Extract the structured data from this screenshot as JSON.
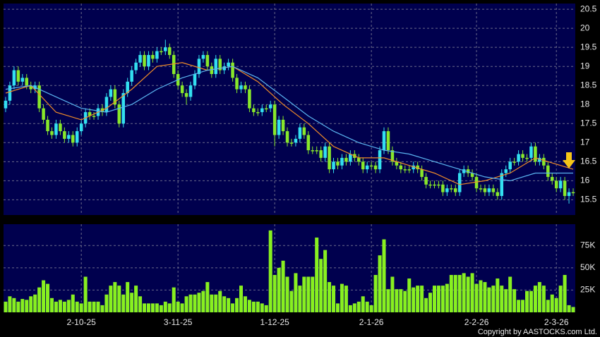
{
  "chart_data": [
    {
      "type": "candlestick",
      "up_color": "#33e0f0",
      "down_color": "#88e82a",
      "ylim": [
        15.1,
        20.65
      ],
      "yticks": [
        15.5,
        16,
        16.5,
        17,
        17.5,
        18,
        18.5,
        19,
        19.5,
        20,
        20.5
      ],
      "grid": true,
      "open": [
        17.9,
        18.1,
        18.5,
        18.9,
        18.6,
        18.7,
        18.5,
        18.4,
        18.5,
        17.9,
        17.6,
        17.3,
        17.2,
        17.5,
        17.3,
        17.1,
        17.2,
        17.0,
        17.3,
        17.5,
        17.8,
        17.7,
        17.7,
        17.9,
        17.8,
        18.2,
        18.4,
        18.0,
        17.5,
        18.3,
        18.6,
        18.9,
        19.1,
        19.3,
        19.0,
        19.3,
        19.2,
        19.4,
        19.4,
        19.5,
        19.3,
        18.8,
        18.5,
        18.3,
        18.2,
        18.5,
        18.8,
        19.2,
        19.3,
        19.0,
        18.8,
        19.2,
        18.9,
        19.0,
        19.1,
        18.7,
        18.4,
        18.5,
        18.4,
        17.9,
        17.8,
        17.8,
        17.9,
        17.9,
        18.0,
        17.2,
        17.6,
        17.3,
        17.0,
        17.0,
        17.1,
        17.4,
        17.2,
        16.8,
        16.8,
        16.8,
        16.6,
        16.9,
        16.3,
        16.5,
        16.4,
        16.6,
        16.5,
        16.7,
        16.6,
        16.5,
        16.3,
        16.4,
        16.4,
        16.3,
        16.8,
        17.3,
        16.8,
        16.5,
        16.4,
        16.3,
        16.3,
        16.3,
        16.4,
        16.3,
        16.1,
        15.9,
        15.9,
        15.9,
        15.9,
        15.7,
        15.8,
        15.8,
        15.7,
        16.2,
        16.3,
        16.2,
        16.1,
        15.8,
        15.8,
        15.7,
        15.8,
        15.7,
        15.6,
        16.2,
        16.3,
        16.5,
        16.5,
        16.7,
        16.6,
        16.6,
        16.9,
        16.5,
        16.6,
        16.4,
        16.1,
        16.0,
        15.8,
        16.0,
        15.6,
        15.7
      ],
      "high": [
        18.2,
        18.6,
        19.0,
        19.0,
        18.8,
        18.8,
        18.6,
        18.6,
        18.6,
        18.0,
        17.7,
        17.4,
        17.6,
        17.6,
        17.4,
        17.3,
        17.3,
        17.4,
        17.6,
        17.9,
        17.9,
        17.8,
        18.0,
        18.0,
        18.3,
        18.5,
        18.5,
        18.1,
        18.4,
        18.7,
        19.0,
        19.2,
        19.4,
        19.4,
        19.4,
        19.4,
        19.5,
        19.5,
        19.7,
        19.6,
        19.4,
        18.9,
        18.6,
        18.4,
        18.6,
        18.9,
        19.3,
        19.4,
        19.4,
        19.1,
        19.3,
        19.3,
        19.1,
        19.2,
        19.2,
        18.8,
        18.6,
        18.6,
        18.5,
        18.0,
        17.9,
        18.0,
        18.0,
        18.1,
        18.1,
        17.7,
        17.7,
        17.4,
        17.1,
        17.2,
        17.5,
        17.5,
        17.3,
        16.9,
        16.9,
        16.9,
        17.0,
        17.0,
        16.6,
        16.6,
        16.7,
        16.7,
        16.8,
        16.8,
        16.7,
        16.6,
        16.5,
        16.5,
        16.5,
        16.9,
        17.4,
        17.4,
        16.9,
        16.6,
        16.5,
        16.4,
        16.4,
        16.5,
        16.5,
        16.4,
        16.2,
        16.0,
        16.0,
        16.0,
        16.0,
        15.9,
        15.9,
        15.9,
        16.3,
        16.4,
        16.4,
        16.3,
        16.2,
        15.9,
        15.9,
        15.9,
        15.9,
        15.8,
        16.3,
        16.4,
        16.6,
        16.6,
        16.8,
        16.8,
        16.7,
        17.0,
        17.0,
        16.7,
        16.7,
        16.5,
        16.2,
        16.1,
        16.1,
        16.1,
        15.8,
        15.8
      ],
      "low": [
        17.8,
        18.0,
        18.4,
        18.5,
        18.5,
        18.4,
        18.3,
        18.3,
        17.8,
        17.5,
        17.2,
        17.1,
        17.1,
        17.2,
        17.0,
        17.0,
        16.9,
        16.9,
        17.2,
        17.4,
        17.6,
        17.6,
        17.6,
        17.7,
        17.7,
        18.1,
        17.9,
        17.4,
        17.4,
        18.2,
        18.5,
        18.8,
        19.0,
        18.9,
        18.9,
        19.1,
        19.1,
        19.3,
        19.3,
        19.2,
        18.7,
        18.4,
        18.2,
        18.0,
        18.1,
        18.4,
        18.7,
        19.1,
        18.9,
        18.7,
        18.7,
        18.8,
        18.8,
        18.9,
        18.6,
        18.3,
        18.3,
        18.3,
        17.8,
        17.7,
        17.7,
        17.7,
        17.8,
        17.8,
        16.9,
        17.1,
        17.2,
        16.9,
        16.9,
        16.9,
        17.0,
        17.1,
        16.7,
        16.7,
        16.7,
        16.5,
        16.5,
        16.2,
        16.2,
        16.3,
        16.3,
        16.4,
        16.4,
        16.5,
        16.4,
        16.2,
        16.2,
        16.3,
        16.2,
        16.2,
        16.7,
        16.7,
        16.4,
        16.3,
        16.2,
        16.2,
        16.2,
        16.2,
        16.2,
        16.0,
        15.8,
        15.8,
        15.8,
        15.8,
        15.6,
        15.6,
        15.7,
        15.6,
        15.6,
        16.1,
        16.1,
        16.0,
        15.7,
        15.7,
        15.6,
        15.6,
        15.6,
        15.5,
        15.5,
        16.1,
        16.2,
        16.4,
        16.4,
        16.5,
        16.5,
        16.5,
        16.4,
        16.4,
        16.3,
        16.0,
        15.9,
        15.7,
        15.7,
        15.5,
        15.4,
        15.6
      ],
      "close": [
        18.1,
        18.5,
        18.9,
        18.6,
        18.7,
        18.5,
        18.4,
        18.5,
        17.9,
        17.6,
        17.3,
        17.2,
        17.5,
        17.3,
        17.1,
        17.2,
        17.0,
        17.3,
        17.5,
        17.8,
        17.7,
        17.7,
        17.9,
        17.8,
        18.2,
        18.4,
        18.0,
        17.5,
        18.3,
        18.6,
        18.9,
        19.1,
        19.3,
        19.0,
        19.3,
        19.2,
        19.4,
        19.4,
        19.5,
        19.3,
        18.8,
        18.5,
        18.3,
        18.2,
        18.5,
        18.8,
        19.2,
        19.3,
        19.0,
        18.8,
        19.2,
        18.9,
        19.0,
        19.1,
        18.7,
        18.4,
        18.5,
        18.4,
        17.9,
        17.8,
        17.8,
        17.9,
        17.9,
        18.0,
        17.2,
        17.6,
        17.3,
        17.0,
        17.0,
        17.1,
        17.4,
        17.2,
        16.8,
        16.8,
        16.8,
        16.6,
        16.9,
        16.3,
        16.5,
        16.4,
        16.6,
        16.5,
        16.7,
        16.6,
        16.5,
        16.3,
        16.4,
        16.4,
        16.3,
        16.8,
        17.3,
        16.8,
        16.5,
        16.4,
        16.3,
        16.3,
        16.3,
        16.4,
        16.3,
        16.1,
        15.9,
        15.9,
        15.9,
        15.9,
        15.7,
        15.8,
        15.8,
        15.7,
        16.2,
        16.3,
        16.2,
        16.1,
        15.8,
        15.8,
        15.7,
        15.8,
        15.7,
        15.6,
        16.2,
        16.3,
        16.5,
        16.5,
        16.7,
        16.6,
        16.6,
        16.9,
        16.5,
        16.6,
        16.4,
        16.1,
        16.0,
        15.8,
        16.0,
        15.6,
        15.7,
        15.7
      ],
      "series": [
        {
          "color": "#f08c28",
          "x": [
            0,
            6,
            12,
            18,
            24,
            30,
            36,
            42,
            48,
            54,
            60,
            66,
            72,
            78,
            84,
            90,
            96,
            102,
            108,
            114,
            120,
            126,
            132,
            135
          ],
          "values": [
            18.3,
            18.5,
            17.8,
            17.6,
            17.9,
            18.4,
            19.0,
            19.1,
            18.9,
            19.0,
            18.6,
            18.0,
            17.5,
            16.9,
            16.6,
            16.6,
            16.4,
            16.2,
            15.9,
            16.0,
            16.2,
            16.6,
            16.4,
            16.3
          ]
        },
        {
          "color": "#5ab4f0",
          "x": [
            0,
            6,
            12,
            18,
            24,
            30,
            36,
            42,
            48,
            54,
            60,
            66,
            72,
            78,
            84,
            90,
            96,
            102,
            108,
            114,
            120,
            126,
            132,
            135
          ],
          "values": [
            18.4,
            18.5,
            18.2,
            17.9,
            17.8,
            18.0,
            18.4,
            18.7,
            18.9,
            19.0,
            18.7,
            18.2,
            17.7,
            17.3,
            17.0,
            16.8,
            16.7,
            16.5,
            16.3,
            16.1,
            16.0,
            16.2,
            16.2,
            16.2
          ]
        }
      ]
    },
    {
      "type": "bar",
      "color": "#88f020",
      "ylim": [
        0,
        99000
      ],
      "yticks": [
        {
          "value": 25000,
          "label": "25K"
        },
        {
          "value": 50000,
          "label": "50K"
        },
        {
          "value": 75000,
          "label": "75K"
        }
      ],
      "grid": true,
      "categories": [
        null,
        null,
        null,
        null,
        null,
        null,
        null,
        null,
        null,
        null,
        null,
        null,
        null,
        null,
        null,
        null,
        null,
        null,
        "2-10-25",
        null,
        null,
        null,
        null,
        null,
        null,
        null,
        null,
        null,
        null,
        null,
        null,
        null,
        null,
        null,
        null,
        null,
        null,
        null,
        null,
        null,
        null,
        "3-11-25",
        null,
        null,
        null,
        null,
        null,
        null,
        null,
        null,
        null,
        null,
        null,
        null,
        null,
        null,
        null,
        null,
        null,
        null,
        null,
        null,
        null,
        null,
        "1-12-25",
        null,
        null,
        null,
        null,
        null,
        null,
        null,
        null,
        null,
        null,
        null,
        null,
        null,
        null,
        null,
        null,
        null,
        null,
        null,
        null,
        null,
        null,
        "2-1-26",
        null,
        null,
        null,
        null,
        null,
        null,
        null,
        null,
        null,
        null,
        null,
        null,
        null,
        null,
        null,
        null,
        null,
        null,
        null,
        null,
        null,
        null,
        null,
        null,
        "2-2-26",
        null,
        null,
        null,
        null,
        null,
        null,
        null,
        null,
        null,
        null,
        null,
        null,
        null,
        null,
        null,
        null,
        null,
        null,
        "2-3-26",
        null,
        null,
        null,
        null
      ],
      "values": [
        12000,
        18000,
        16000,
        12000,
        15000,
        14000,
        18000,
        20000,
        28000,
        36000,
        32000,
        16000,
        12000,
        14000,
        12000,
        14000,
        20000,
        12000,
        10000,
        40000,
        12000,
        12000,
        12000,
        8000,
        20000,
        30000,
        34000,
        30000,
        20000,
        34000,
        22000,
        30000,
        18000,
        10000,
        10000,
        10000,
        10000,
        8000,
        12000,
        10000,
        28000,
        12000,
        10000,
        18000,
        20000,
        20000,
        22000,
        24000,
        34000,
        20000,
        20000,
        24000,
        18000,
        16000,
        10000,
        16000,
        30000,
        18000,
        14000,
        12000,
        12000,
        10000,
        8000,
        92000,
        42000,
        50000,
        58000,
        40000,
        24000,
        44000,
        30000,
        40000,
        40000,
        40000,
        84000,
        60000,
        70000,
        34000,
        30000,
        10000,
        32000,
        30000,
        8000,
        10000,
        12000,
        18000,
        12000,
        8000,
        42000,
        64000,
        82000,
        26000,
        40000,
        26000,
        26000,
        24000,
        38000,
        28000,
        30000,
        30000,
        16000,
        22000,
        30000,
        30000,
        30000,
        32000,
        42000,
        42000,
        42000,
        44000,
        40000,
        44000,
        32000,
        36000,
        34000,
        28000,
        30000,
        38000,
        30000,
        26000,
        40000,
        26000,
        14000,
        14000,
        24000,
        24000,
        30000,
        34000,
        30000,
        14000,
        20000,
        16000,
        30000,
        42000,
        8000,
        6000
      ]
    }
  ],
  "copyright": "Copyright by AASTOCKS.com Ltd."
}
